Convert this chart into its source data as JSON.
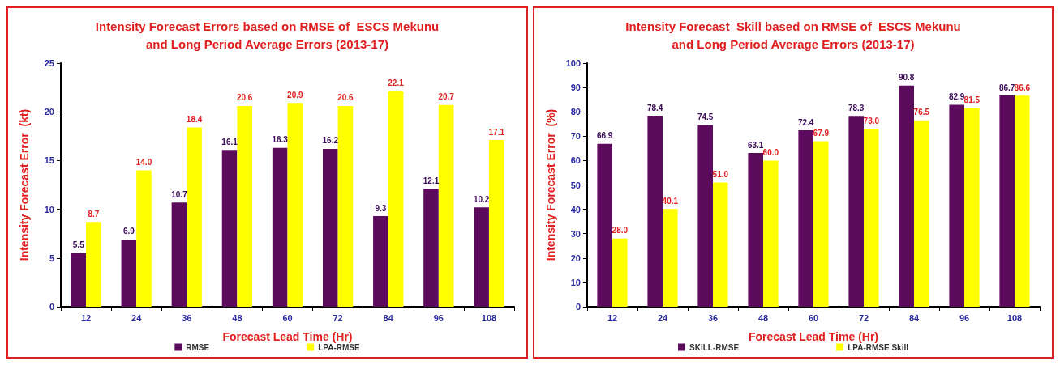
{
  "chart_data": [
    {
      "type": "bar",
      "title": "Intensity Forecast Errors based on RMSE of  ESCS Mekunu\nand Long Period Average Errors (2013-17)",
      "xlabel": "Forecast Lead Time (Hr)",
      "ylabel": "Intensity Forecast Error  (kt)",
      "categories": [
        "12",
        "24",
        "36",
        "48",
        "60",
        "72",
        "84",
        "96",
        "108"
      ],
      "series": [
        {
          "name": "RMSE",
          "color": "#5c0a5c",
          "values": [
            5.5,
            6.9,
            10.7,
            16.1,
            16.3,
            16.2,
            9.3,
            12.1,
            10.2
          ],
          "value_labels": [
            "5.5",
            "6.9",
            "10.7",
            "16.1",
            "16.3",
            "16.2",
            "9.3",
            "12.1",
            "10.2"
          ]
        },
        {
          "name": "LPA-RMSE",
          "color": "#ffff00",
          "values": [
            8.7,
            14,
            18.4,
            20.6,
            20.9,
            20.6,
            22.1,
            20.7,
            17.1
          ],
          "value_labels": [
            "8.7",
            "14.0",
            "18.4",
            "20.6",
            "20.9",
            "20.6",
            "22.1",
            "20.7",
            "17.1"
          ]
        }
      ],
      "ylim": [
        0,
        25
      ],
      "yticks": [
        0,
        5,
        10,
        15,
        20,
        25
      ],
      "legend": "bottom",
      "grid": false
    },
    {
      "type": "bar",
      "title": "Intensity Forecast  Skill based on RMSE of  ESCS Mekunu\nand Long Period Average Errors (2013-17)",
      "xlabel": "Forecast Lead Time (Hr)",
      "ylabel": "Intensity Forecast Error  (%)",
      "categories": [
        "12",
        "24",
        "36",
        "48",
        "60",
        "72",
        "84",
        "96",
        "108"
      ],
      "series": [
        {
          "name": "SKILL-RMSE",
          "color": "#5c0a5c",
          "values": [
            66.9,
            78.4,
            74.5,
            63.1,
            72.4,
            78.3,
            90.8,
            82.9,
            86.7
          ],
          "value_labels": [
            "66.9",
            "78.4",
            "74.5",
            "63.1",
            "72.4",
            "78.3",
            "90.8",
            "82.9",
            "86.7"
          ]
        },
        {
          "name": "LPA-RMSE Skill",
          "color": "#ffff00",
          "values": [
            28,
            40.1,
            51,
            60,
            67.9,
            73,
            76.5,
            81.5,
            86.6
          ],
          "value_labels": [
            "28.0",
            "40.1",
            "51.0",
            "60.0",
            "67.9",
            "73.0",
            "76.5",
            "81.5",
            "86.6"
          ]
        }
      ],
      "ylim": [
        0,
        100
      ],
      "yticks": [
        0,
        10,
        20,
        30,
        40,
        50,
        60,
        70,
        80,
        90,
        100
      ],
      "legend": "bottom",
      "grid": false
    }
  ]
}
